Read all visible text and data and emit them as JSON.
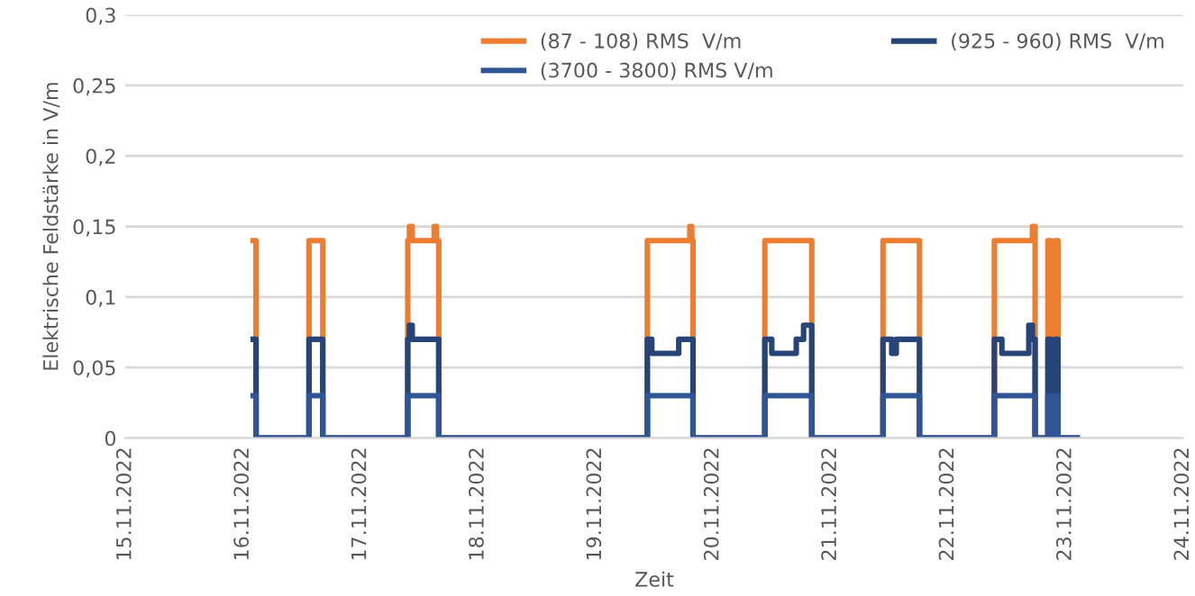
{
  "chart_data": {
    "type": "step",
    "xlabel": "Zeit",
    "ylabel": "Elektrische Feldstärke in V/m",
    "ylim": [
      0,
      0.3
    ],
    "yticks": [
      {
        "value": 0,
        "label": "0"
      },
      {
        "value": 0.05,
        "label": "0,05"
      },
      {
        "value": 0.1,
        "label": "0,1"
      },
      {
        "value": 0.15,
        "label": "0,15"
      },
      {
        "value": 0.2,
        "label": "0,2"
      },
      {
        "value": 0.25,
        "label": "0,25"
      },
      {
        "value": 0.3,
        "label": "0,3"
      }
    ],
    "xlim": [
      "2022-11-15",
      "2022-11-24"
    ],
    "xticks": [
      {
        "value": "2022-11-15",
        "label": "15.11.2022"
      },
      {
        "value": "2022-11-16",
        "label": "16.11.2022"
      },
      {
        "value": "2022-11-17",
        "label": "17.11.2022"
      },
      {
        "value": "2022-11-18",
        "label": "18.11.2022"
      },
      {
        "value": "2022-11-19",
        "label": "19.11.2022"
      },
      {
        "value": "2022-11-20",
        "label": "20.11.2022"
      },
      {
        "value": "2022-11-21",
        "label": "21.11.2022"
      },
      {
        "value": "2022-11-22",
        "label": "22.11.2022"
      },
      {
        "value": "2022-11-23",
        "label": "23.11.2022"
      },
      {
        "value": "2022-11-24",
        "label": "24.11.2022"
      }
    ],
    "grid": "y",
    "legend": "top right",
    "series": [
      {
        "name": "(87 - 108) RMS  V/m",
        "color": "#ed7d31",
        "x": [
          "2022-11-16T02:05",
          "2022-11-16T02:40",
          "2022-11-16T13:29",
          "2022-11-16T16:18",
          "2022-11-17T09:39",
          "2022-11-17T10:00",
          "2022-11-17T10:34",
          "2022-11-17T15:03",
          "2022-11-17T15:30",
          "2022-11-17T15:59",
          "2022-11-19T10:35",
          "2022-11-19T19:16",
          "2022-11-19T19:40",
          "2022-11-19T19:55",
          "2022-11-20T10:35",
          "2022-11-20T20:10",
          "2022-11-21T10:43",
          "2022-11-21T18:10",
          "2022-11-22T09:28",
          "2022-11-22T17:14",
          "2022-11-22T17:47",
          "2022-11-22T20:24",
          "2022-11-22T20:57",
          "2022-11-22T21:53",
          "2022-11-22T22:27",
          "2022-11-23T02:22"
        ],
        "values": [
          0.14,
          0,
          0.14,
          0,
          0.14,
          0.15,
          0.14,
          0.15,
          0.14,
          0,
          0.14,
          0.15,
          0.14,
          0,
          0.14,
          0,
          0.14,
          0,
          0.14,
          0.15,
          0,
          0.14,
          0,
          0.14,
          0,
          0
        ]
      },
      {
        "name": "(925 - 960) RMS  V/m",
        "color": "#264478",
        "x": [
          "2022-11-16T02:05",
          "2022-11-16T02:40",
          "2022-11-16T13:29",
          "2022-11-16T16:18",
          "2022-11-17T09:39",
          "2022-11-17T10:00",
          "2022-11-17T10:34",
          "2022-11-17T15:59",
          "2022-11-19T10:35",
          "2022-11-19T11:30",
          "2022-11-19T17:00",
          "2022-11-19T19:55",
          "2022-11-20T10:35",
          "2022-11-20T12:00",
          "2022-11-20T17:00",
          "2022-11-20T18:30",
          "2022-11-20T20:10",
          "2022-11-21T10:43",
          "2022-11-21T12:30",
          "2022-11-21T13:26",
          "2022-11-21T18:10",
          "2022-11-22T09:28",
          "2022-11-22T11:00",
          "2022-11-22T16:30",
          "2022-11-22T17:14",
          "2022-11-22T17:47",
          "2022-11-22T20:24",
          "2022-11-22T20:57",
          "2022-11-22T21:53",
          "2022-11-22T22:27",
          "2022-11-23T02:22"
        ],
        "values": [
          0.07,
          0,
          0.07,
          0,
          0.07,
          0.08,
          0.07,
          0,
          0.07,
          0.06,
          0.07,
          0,
          0.07,
          0.06,
          0.07,
          0.08,
          0,
          0.07,
          0.06,
          0.07,
          0,
          0.07,
          0.06,
          0.08,
          0.07,
          0,
          0.07,
          0,
          0.07,
          0,
          0
        ]
      },
      {
        "name": "(3700 - 3800) RMS V/m",
        "color": "#2f5597",
        "x": [
          "2022-11-16T02:05",
          "2022-11-16T02:40",
          "2022-11-16T13:29",
          "2022-11-16T16:18",
          "2022-11-17T09:39",
          "2022-11-17T15:59",
          "2022-11-19T10:35",
          "2022-11-19T19:55",
          "2022-11-20T10:35",
          "2022-11-20T20:10",
          "2022-11-21T10:43",
          "2022-11-21T18:10",
          "2022-11-22T09:28",
          "2022-11-22T17:47",
          "2022-11-22T20:24",
          "2022-11-22T20:57",
          "2022-11-22T21:53",
          "2022-11-22T22:27",
          "2022-11-23T02:22"
        ],
        "values": [
          0.03,
          0,
          0.03,
          0,
          0.03,
          0,
          0.03,
          0,
          0.03,
          0,
          0.03,
          0,
          0.03,
          0,
          0.03,
          0,
          0.03,
          0,
          0
        ]
      }
    ]
  }
}
